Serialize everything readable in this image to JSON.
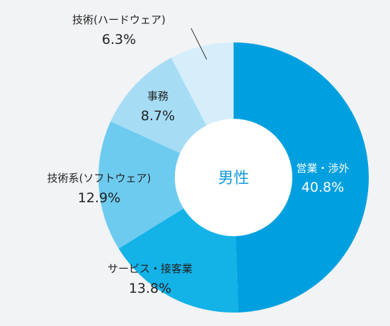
{
  "chart_data": {
    "type": "pie",
    "center_label": "男性",
    "slices": [
      {
        "label": "営業・渉外",
        "value": 40.8,
        "value_text": "40.8%",
        "color": "#00a0e0"
      },
      {
        "label": "サービス・接客業",
        "value": 13.8,
        "value_text": "13.8%",
        "color": "#13b2e7"
      },
      {
        "label": "技術系(ソフトウェア)",
        "value": 12.9,
        "value_text": "12.9%",
        "color": "#6ecbf0"
      },
      {
        "label": "事務",
        "value": 8.7,
        "value_text": "8.7%",
        "color": "#a6ddf5"
      },
      {
        "label": "技術(ハードウェア)",
        "value": 6.3,
        "value_text": "6.3%",
        "color": "#d5eefa"
      }
    ]
  }
}
